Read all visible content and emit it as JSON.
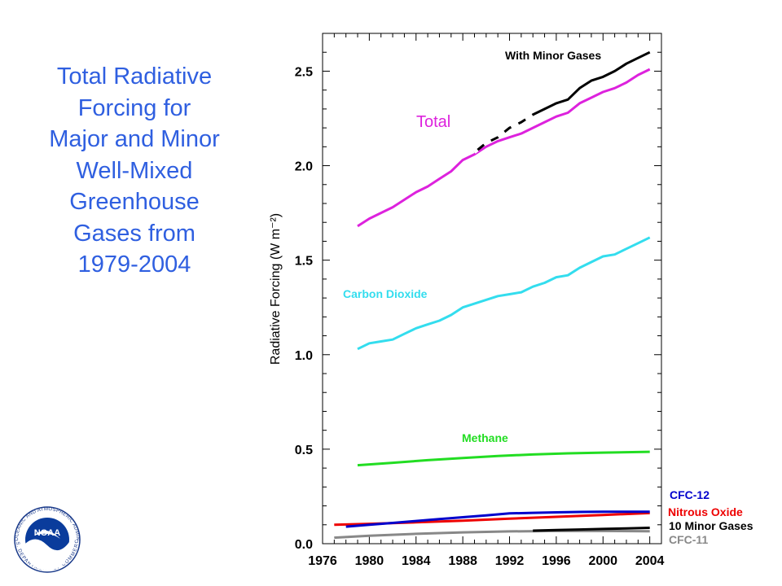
{
  "title_lines": [
    "Total Radiative",
    "Forcing for",
    "Major and Minor",
    "Well-Mixed",
    "Greenhouse",
    "Gases from",
    "1979-2004"
  ],
  "logo": {
    "text": "NOAA",
    "ring_top": "NATIONAL OCEANIC AND ATMOSPHERIC ADMINISTRATION",
    "ring_bottom": "U.S. DEPARTMENT OF COMMERCE"
  },
  "chart_data": {
    "type": "line",
    "title": "",
    "xlabel": "",
    "ylabel": "Radiative Forcing (W m⁻²)",
    "xlim": [
      1976,
      2005
    ],
    "ylim": [
      0,
      2.7
    ],
    "xticks": [
      1976,
      1980,
      1984,
      1988,
      1992,
      1996,
      2000,
      2004
    ],
    "yticks": [
      0.0,
      0.5,
      1.0,
      1.5,
      2.0,
      2.5
    ],
    "ytick_labels": [
      "0.0",
      "0.5",
      "1.0",
      "1.5",
      "2.0",
      "2.5"
    ],
    "grid": false,
    "series": [
      {
        "name": "With Minor Gases",
        "color": "#000000",
        "x": [
          1989,
          1990,
          1991,
          1992,
          1993,
          1994,
          1995,
          1996,
          1997,
          1998,
          1999,
          2000,
          2001,
          2002,
          2003,
          2004
        ],
        "y": [
          2.07,
          2.12,
          2.15,
          2.2,
          2.23,
          2.27,
          2.3,
          2.33,
          2.35,
          2.41,
          2.45,
          2.47,
          2.5,
          2.54,
          2.57,
          2.6
        ]
      },
      {
        "name": "Total",
        "color": "#dd22dd",
        "x": [
          1979,
          1980,
          1981,
          1982,
          1983,
          1984,
          1985,
          1986,
          1987,
          1988,
          1989,
          1990,
          1991,
          1992,
          1993,
          1994,
          1995,
          1996,
          1997,
          1998,
          1999,
          2000,
          2001,
          2002,
          2003,
          2004
        ],
        "y": [
          1.68,
          1.72,
          1.75,
          1.78,
          1.82,
          1.86,
          1.89,
          1.93,
          1.97,
          2.03,
          2.06,
          2.1,
          2.13,
          2.15,
          2.17,
          2.2,
          2.23,
          2.26,
          2.28,
          2.33,
          2.36,
          2.39,
          2.41,
          2.44,
          2.48,
          2.51
        ]
      },
      {
        "name": "Carbon Dioxide",
        "color": "#33ddee",
        "x": [
          1979,
          1980,
          1981,
          1982,
          1983,
          1984,
          1985,
          1986,
          1987,
          1988,
          1989,
          1990,
          1991,
          1992,
          1993,
          1994,
          1995,
          1996,
          1997,
          1998,
          1999,
          2000,
          2001,
          2002,
          2003,
          2004
        ],
        "y": [
          1.03,
          1.06,
          1.07,
          1.08,
          1.11,
          1.14,
          1.16,
          1.18,
          1.21,
          1.25,
          1.27,
          1.29,
          1.31,
          1.32,
          1.33,
          1.36,
          1.38,
          1.41,
          1.42,
          1.46,
          1.49,
          1.52,
          1.53,
          1.56,
          1.59,
          1.62
        ]
      },
      {
        "name": "Methane",
        "color": "#22dd22",
        "x": [
          1979,
          1982,
          1985,
          1988,
          1991,
          1994,
          1997,
          2000,
          2004
        ],
        "y": [
          0.415,
          0.428,
          0.442,
          0.453,
          0.464,
          0.472,
          0.478,
          0.482,
          0.486
        ]
      },
      {
        "name": "CFC-12",
        "color": "#0000cc",
        "x": [
          1978,
          1980,
          1982,
          1984,
          1986,
          1988,
          1990,
          1992,
          1994,
          1996,
          1998,
          2000,
          2004
        ],
        "y": [
          0.09,
          0.1,
          0.11,
          0.12,
          0.13,
          0.14,
          0.15,
          0.16,
          0.163,
          0.166,
          0.168,
          0.169,
          0.169
        ]
      },
      {
        "name": "Nitrous Oxide",
        "color": "#ee0000",
        "x": [
          1977,
          1980,
          1984,
          1988,
          1992,
          1996,
          2000,
          2004
        ],
        "y": [
          0.1,
          0.105,
          0.113,
          0.122,
          0.132,
          0.142,
          0.152,
          0.162
        ]
      },
      {
        "name": "10 Minor Gases",
        "color": "#000000",
        "x": [
          1994,
          1996,
          1998,
          2000,
          2002,
          2004
        ],
        "y": [
          0.069,
          0.072,
          0.075,
          0.078,
          0.081,
          0.084
        ]
      },
      {
        "name": "CFC-11",
        "color": "#888888",
        "x": [
          1977,
          1980,
          1984,
          1988,
          1992,
          1996,
          2000,
          2004
        ],
        "y": [
          0.032,
          0.042,
          0.052,
          0.06,
          0.065,
          0.067,
          0.067,
          0.066
        ]
      }
    ]
  }
}
